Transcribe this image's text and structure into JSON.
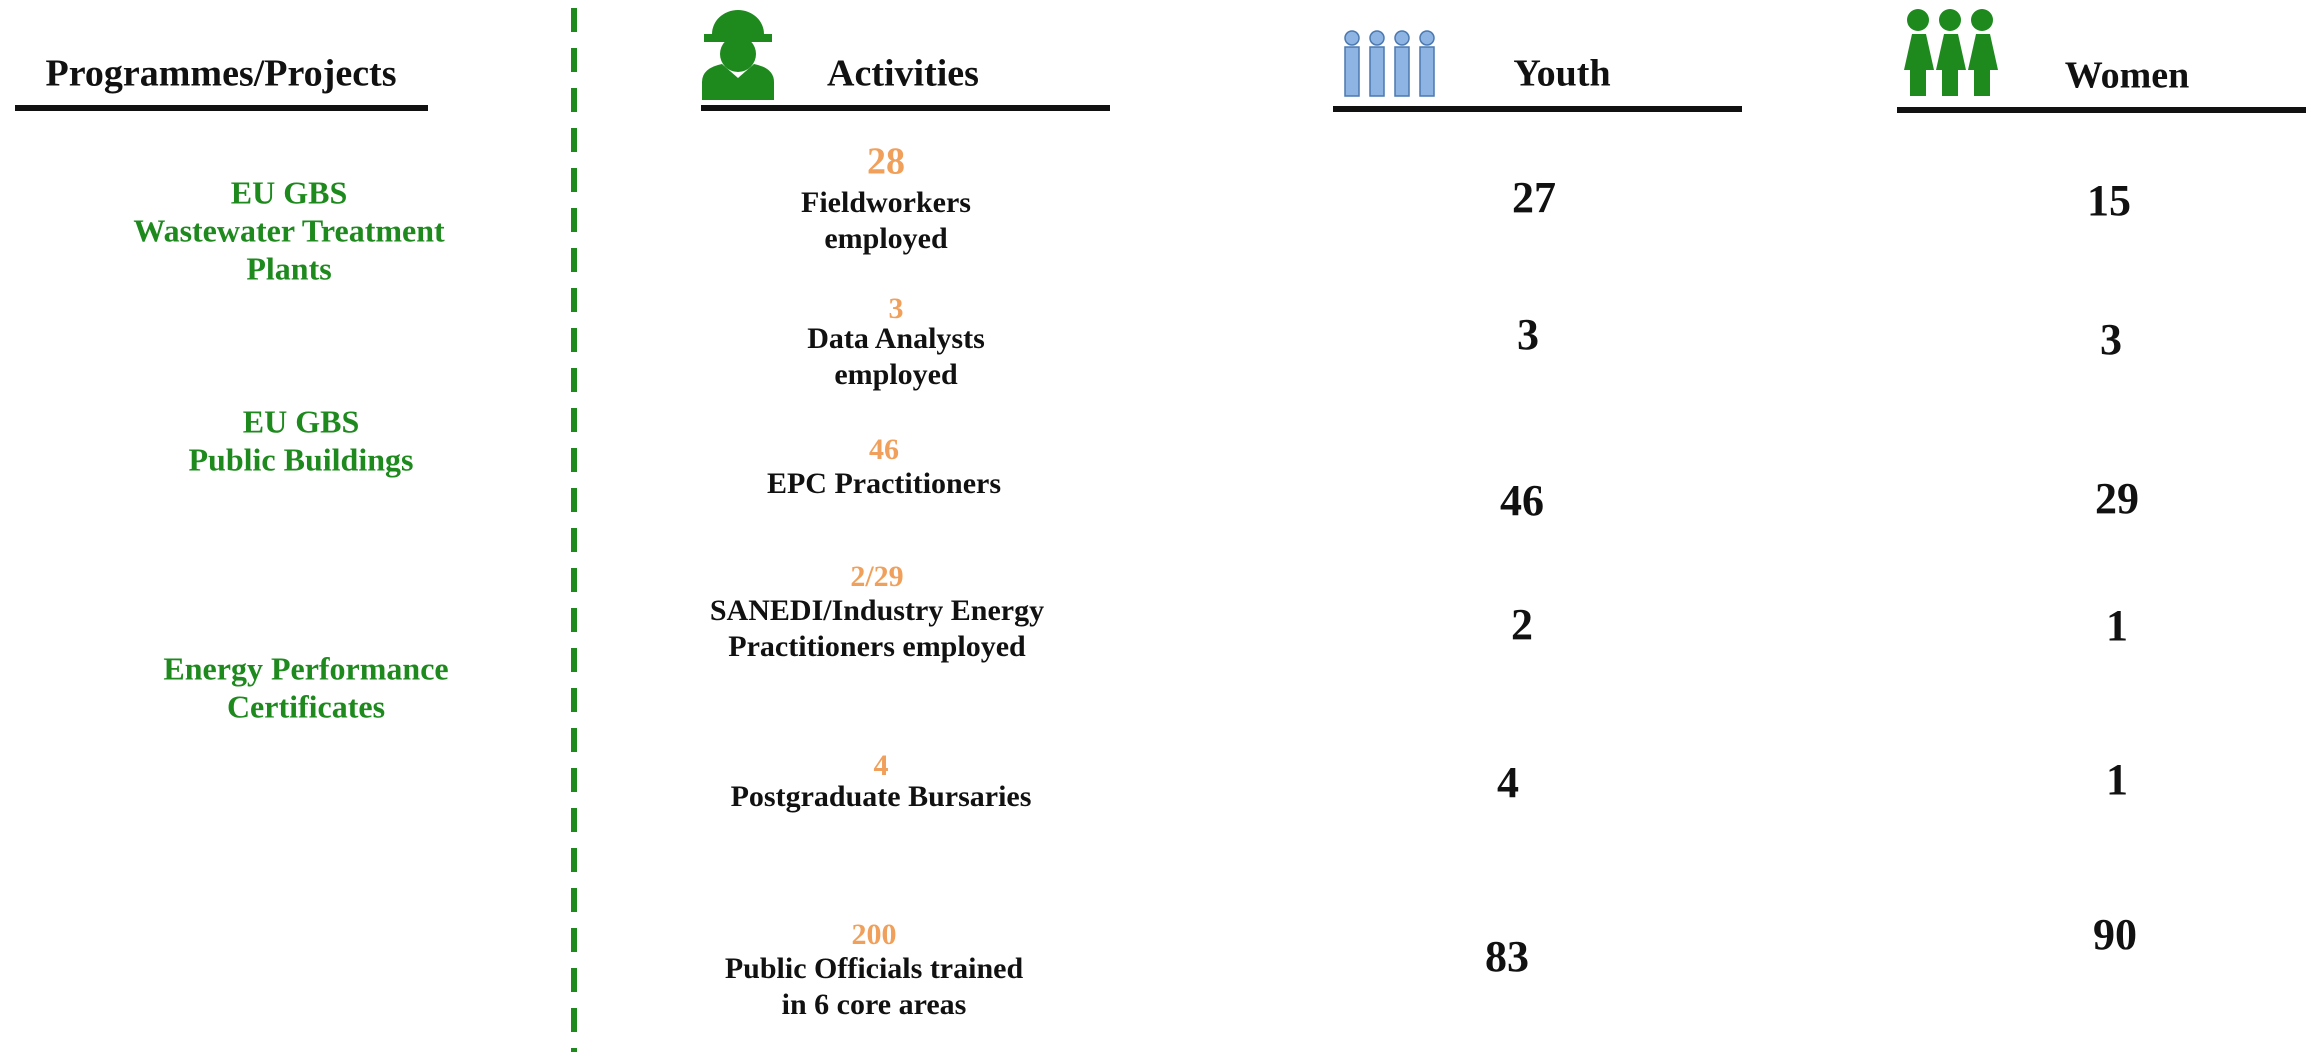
{
  "headers": {
    "programmes": "Programmes/Projects",
    "activities": "Activities",
    "youth": "Youth",
    "women": "Women"
  },
  "programmes": [
    {
      "lines": [
        "EU GBS",
        "Wastewater Treatment",
        "Plants"
      ]
    },
    {
      "lines": [
        "EU GBS",
        "Public Buildings"
      ]
    },
    {
      "lines": [
        "Energy Performance",
        "Certificates"
      ]
    }
  ],
  "rows": [
    {
      "count": 28,
      "lines": [
        "Fieldworkers",
        "employed"
      ],
      "youth": 27,
      "women": 15
    },
    {
      "count": 3,
      "lines": [
        "Data Analysts",
        "employed"
      ],
      "youth": 3,
      "women": 3
    },
    {
      "count": 46,
      "lines": [
        "EPC Practitioners"
      ],
      "youth": 46,
      "women": 29
    },
    {
      "count": "2/29",
      "lines": [
        "SANEDI/Industry Energy",
        "Practitioners employed"
      ],
      "youth": 2,
      "women": 1
    },
    {
      "count": 4,
      "lines": [
        "Postgraduate Bursaries"
      ],
      "youth": 4,
      "women": 1
    },
    {
      "count": 200,
      "lines": [
        "Public Officials trained",
        "in 6 core areas"
      ],
      "youth": 83,
      "women": 90
    }
  ]
}
